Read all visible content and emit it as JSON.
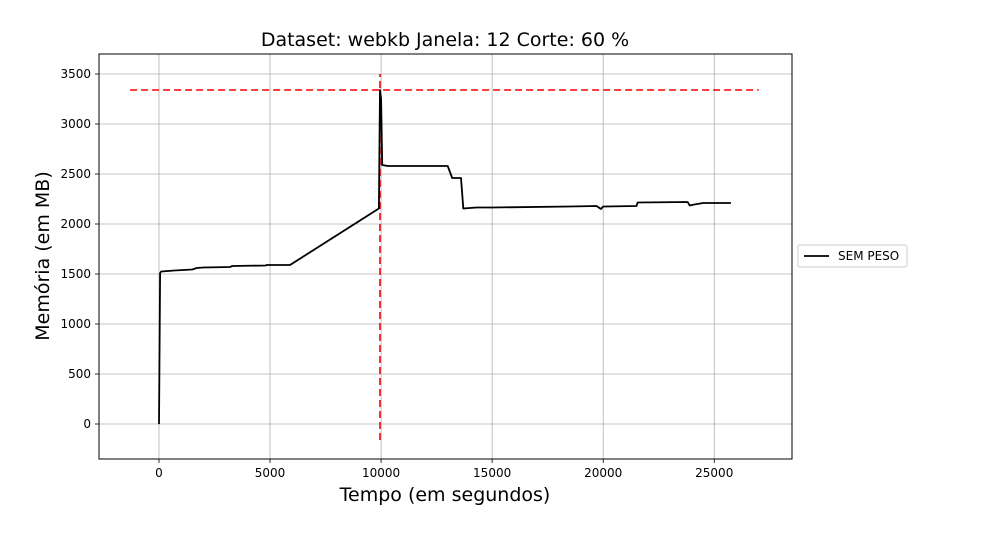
{
  "chart_data": {
    "type": "line",
    "title": "Dataset: webkb Janela: 12 Corte: 60 %",
    "xlabel": "Tempo (em segundos)",
    "ylabel": "Memória (em MB)",
    "xlim": [
      -2700,
      28500
    ],
    "ylim": [
      -350,
      3700
    ],
    "x_ticks": [
      0,
      5000,
      10000,
      15000,
      20000,
      25000
    ],
    "y_ticks": [
      0,
      500,
      1000,
      1500,
      2000,
      2500,
      3000,
      3500
    ],
    "grid": true,
    "legend_position": "outside-right",
    "series": [
      {
        "name": "SEM PESO",
        "color": "#000000",
        "x": [
          0,
          50,
          100,
          400,
          700,
          1500,
          1700,
          2000,
          3200,
          3300,
          4800,
          4850,
          5900,
          9900,
          9950,
          10000,
          10050,
          10300,
          13000,
          13200,
          13600,
          13700,
          14300,
          15000,
          18500,
          19700,
          19900,
          20000,
          20100,
          21500,
          21550,
          23800,
          23900,
          24100,
          24500,
          25750
        ],
        "y": [
          0,
          1510,
          1525,
          1530,
          1535,
          1545,
          1560,
          1565,
          1570,
          1580,
          1585,
          1590,
          1590,
          2155,
          3340,
          3250,
          2590,
          2580,
          2580,
          2460,
          2460,
          2155,
          2165,
          2165,
          2175,
          2180,
          2150,
          2175,
          2175,
          2180,
          2215,
          2220,
          2185,
          2195,
          2210,
          2210
        ]
      }
    ],
    "reference_lines": [
      {
        "orientation": "horizontal",
        "value": 3340,
        "from": -1300,
        "to": 27000,
        "color": "#ff0000",
        "style": "dashed"
      },
      {
        "orientation": "vertical",
        "value": 9950,
        "from": -160,
        "to": 3500,
        "color": "#ff0000",
        "style": "dashed"
      }
    ]
  }
}
